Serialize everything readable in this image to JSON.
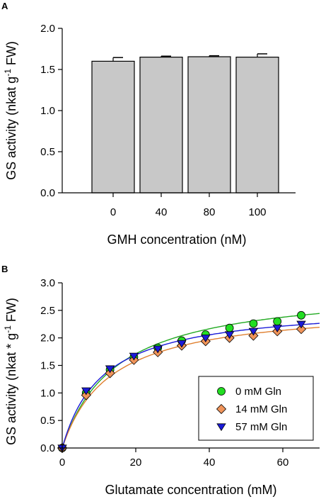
{
  "chart_data": [
    {
      "panel": "A",
      "type": "bar",
      "title": "",
      "categories": [
        "0",
        "40",
        "80",
        "100"
      ],
      "values": [
        1.6,
        1.65,
        1.655,
        1.65
      ],
      "errors": [
        0.045,
        0.012,
        0.012,
        0.04
      ],
      "bar_color": "#c8c8c8",
      "xlabel": "GMH concentration (nM)",
      "ylabel_main": "GS activity (nkat g",
      "ylabel_sup": "-1",
      "ylabel_end": " FW)",
      "ylim": [
        0,
        2.0
      ],
      "yticks": [
        "0.0",
        "0.5",
        "1.0",
        "1.5",
        "2.0"
      ],
      "grid": false
    },
    {
      "panel": "B",
      "type": "scatter",
      "title": "",
      "xlabel": "Glutamate concentration (mM)",
      "ylabel_main": "GS activity (nkat * g",
      "ylabel_sup": "-1",
      "ylabel_end": " FW)",
      "xlim": [
        0,
        70
      ],
      "ylim": [
        0,
        3.0
      ],
      "xticks": [
        "0",
        "20",
        "40",
        "60"
      ],
      "yticks": [
        "0.0",
        "0.5",
        "1.0",
        "1.5",
        "2.0",
        "2.5",
        "3.0"
      ],
      "legend_position": "bottom-right",
      "grid": false,
      "x": [
        0,
        6.5,
        13,
        19.5,
        26,
        32.5,
        39,
        45.5,
        52,
        58.5,
        65
      ],
      "series": [
        {
          "name": "0 mM Gln",
          "marker": "circle",
          "color": "#22dd22",
          "curve_color": "#22aa22",
          "values": [
            0,
            1.0,
            1.42,
            1.65,
            1.82,
            1.95,
            2.06,
            2.18,
            2.26,
            2.3,
            2.41
          ],
          "fit": {
            "vmax": 2.95,
            "km": 14.5
          }
        },
        {
          "name": "14 mM Gln",
          "marker": "diamond",
          "color": "#f0945a",
          "curve_color": "#e08030",
          "values": [
            0,
            0.96,
            1.36,
            1.6,
            1.74,
            1.86,
            1.94,
            2.0,
            2.04,
            2.12,
            2.16
          ],
          "fit": {
            "vmax": 2.6,
            "km": 13.0
          }
        },
        {
          "name": "57 mM Gln",
          "marker": "triangle-down",
          "color": "#1a1ad8",
          "curve_color": "#1a1ad8",
          "values": [
            0,
            1.04,
            1.44,
            1.67,
            1.8,
            1.9,
            2.0,
            2.06,
            2.12,
            2.18,
            2.25
          ],
          "fit": {
            "vmax": 2.62,
            "km": 11.0
          }
        }
      ]
    }
  ]
}
